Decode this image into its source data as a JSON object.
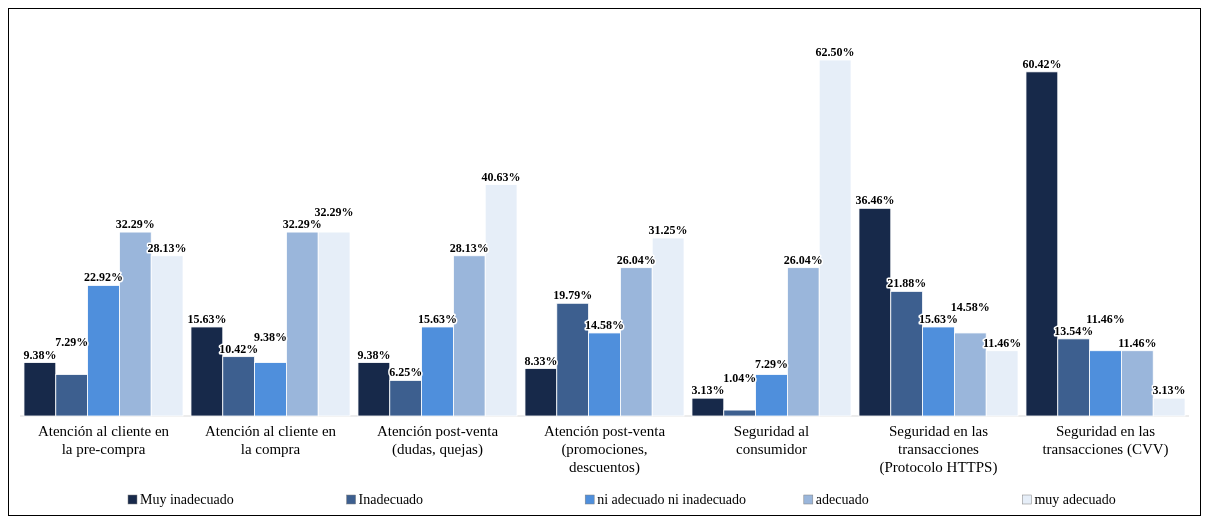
{
  "chart_data": {
    "type": "bar",
    "categories": [
      "Atención al cliente en la pre-compra",
      "Atención al cliente en la compra",
      "Atención post-venta (dudas, quejas)",
      "Atención post-venta (promociones, descuentos)",
      "Seguridad al consumidor",
      "Seguridad en las transacciones (Protocolo HTTPS)",
      "Seguridad en las transacciones (CVV)"
    ],
    "series": [
      {
        "name": "Muy inadecuado",
        "color": "#17294a",
        "values": [
          9.38,
          15.63,
          9.38,
          8.33,
          3.13,
          36.46,
          60.42
        ],
        "value_labels": [
          "9.38%",
          "15.63%",
          "9.38%",
          "8.33%",
          "3.13%",
          "36.46%",
          "60.42%"
        ]
      },
      {
        "name": "Inadecuado",
        "color": "#3d5f8f",
        "values": [
          7.29,
          10.42,
          6.25,
          19.79,
          1.04,
          21.88,
          13.54
        ],
        "value_labels": [
          "7.29%",
          "10.42%",
          "6.25%",
          "19.79%",
          "1.04%",
          "21.88%",
          "13.54%"
        ]
      },
      {
        "name": "ni adecuado ni inadecuado",
        "color": "#4f8fdc",
        "values": [
          22.92,
          9.38,
          15.63,
          14.58,
          7.29,
          15.63,
          11.46
        ],
        "value_labels": [
          "22.92%",
          "9.38%",
          "15.63%",
          "14.58%",
          "7.29%",
          "15.63%",
          "11.46%"
        ]
      },
      {
        "name": "adecuado",
        "color": "#9ab6db",
        "values": [
          32.29,
          32.29,
          28.13,
          26.04,
          26.04,
          14.58,
          11.46
        ],
        "value_labels": [
          "32.29%",
          "32.29%",
          "28.13%",
          "26.04%",
          "26.04%",
          "14.58%",
          "11.46%"
        ]
      },
      {
        "name": "muy adecuado",
        "color": "#e6eef8",
        "values": [
          28.13,
          32.29,
          40.63,
          31.25,
          62.5,
          11.46,
          3.13
        ],
        "value_labels": [
          "28.13%",
          "32.29%",
          "40.63%",
          "31.25%",
          "62.50%",
          "11.46%",
          "3.13%"
        ]
      }
    ],
    "legend": "bottom"
  }
}
